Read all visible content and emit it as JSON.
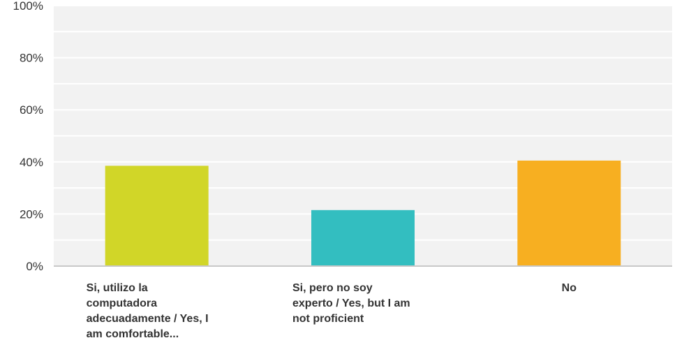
{
  "chart_data": {
    "type": "bar",
    "categories": [
      "Si, utilizo la computadora adecuadamente / Yes, I am comfortable...",
      "Si, pero no soy experto / Yes, but I am not proficient",
      "No"
    ],
    "values": [
      38.5,
      21.5,
      40.5
    ],
    "colors": [
      "#d1d628",
      "#33bec0",
      "#f7af21"
    ],
    "ylim": [
      0,
      100
    ],
    "yticks": [
      0,
      20,
      40,
      60,
      80,
      100
    ],
    "ytick_labels": [
      "0%",
      "20%",
      "40%",
      "60%",
      "80%",
      "100%"
    ],
    "grid": true,
    "plot_background": "#f2f2f2",
    "title": "",
    "xlabel": "",
    "ylabel": ""
  }
}
